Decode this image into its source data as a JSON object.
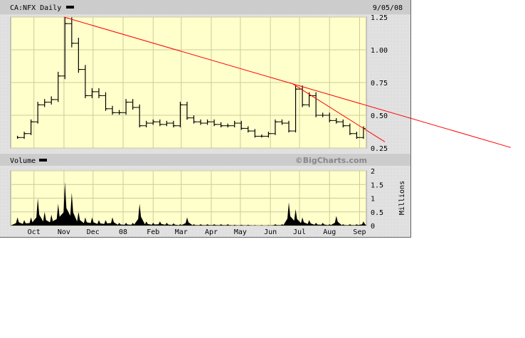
{
  "chart_data": [
    {
      "type": "line",
      "title": "CA:NFX Daily",
      "date_label": "9/05/08",
      "ylim": [
        0.25,
        1.25
      ],
      "y_ticks": [
        "1.25",
        "1.00",
        "0.75",
        "0.50",
        "0.25"
      ],
      "grid": true,
      "series_color": "#000000",
      "dates": [
        "2007-09-14",
        "2007-09-21",
        "2007-09-28",
        "2007-10-05",
        "2007-10-12",
        "2007-10-19",
        "2007-10-26",
        "2007-11-02",
        "2007-11-09",
        "2007-11-16",
        "2007-11-23",
        "2007-11-30",
        "2007-12-07",
        "2007-12-14",
        "2007-12-21",
        "2007-12-28",
        "2008-01-04",
        "2008-01-11",
        "2008-01-18",
        "2008-01-25",
        "2008-02-01",
        "2008-02-08",
        "2008-02-15",
        "2008-02-22",
        "2008-02-29",
        "2008-03-07",
        "2008-03-14",
        "2008-03-21",
        "2008-03-28",
        "2008-04-04",
        "2008-04-11",
        "2008-04-18",
        "2008-04-25",
        "2008-05-02",
        "2008-05-09",
        "2008-05-16",
        "2008-05-23",
        "2008-05-30",
        "2008-06-06",
        "2008-06-13",
        "2008-06-20",
        "2008-06-27",
        "2008-07-04",
        "2008-07-11",
        "2008-07-18",
        "2008-07-25",
        "2008-08-01",
        "2008-08-08",
        "2008-08-15",
        "2008-08-22",
        "2008-08-29",
        "2008-09-05"
      ],
      "values": [
        0.33,
        0.36,
        0.45,
        0.58,
        0.6,
        0.62,
        0.8,
        1.2,
        1.05,
        0.85,
        0.65,
        0.68,
        0.65,
        0.55,
        0.52,
        0.52,
        0.6,
        0.56,
        0.42,
        0.44,
        0.45,
        0.43,
        0.44,
        0.42,
        0.58,
        0.48,
        0.45,
        0.44,
        0.45,
        0.43,
        0.42,
        0.42,
        0.44,
        0.4,
        0.38,
        0.34,
        0.34,
        0.36,
        0.45,
        0.44,
        0.38,
        0.7,
        0.58,
        0.65,
        0.5,
        0.5,
        0.46,
        0.45,
        0.42,
        0.36,
        0.33,
        0.4
      ],
      "trendlines": {
        "color": "#ff0000",
        "lines": [
          {
            "from": [
              "2007-11-01",
              1.25
            ],
            "to": [
              "2008-06-24",
              0.74
            ]
          },
          {
            "from": [
              "2008-06-24",
              0.74
            ],
            "to": [
              "2008-09-05",
              0.4
            ]
          }
        ]
      }
    },
    {
      "type": "area",
      "title": "Volume",
      "ylabel": "Millions",
      "ylim": [
        0,
        2
      ],
      "y_ticks": [
        "2",
        "1.5",
        "1",
        "0.5",
        "0"
      ],
      "grid": true,
      "watermark": "©BigCharts.com",
      "x_tick_labels": [
        {
          "label": "Oct",
          "date": "2007-10-01"
        },
        {
          "label": "Nov",
          "date": "2007-11-01"
        },
        {
          "label": "Dec",
          "date": "2007-12-01"
        },
        {
          "label": "08",
          "date": "2008-01-01"
        },
        {
          "label": "Feb",
          "date": "2008-02-01"
        },
        {
          "label": "Mar",
          "date": "2008-03-01"
        },
        {
          "label": "Apr",
          "date": "2008-04-01"
        },
        {
          "label": "May",
          "date": "2008-05-01"
        },
        {
          "label": "Jun",
          "date": "2008-06-01"
        },
        {
          "label": "Jul",
          "date": "2008-07-01"
        },
        {
          "label": "Aug",
          "date": "2008-08-01"
        },
        {
          "label": "Sep",
          "date": "2008-09-01"
        }
      ],
      "values": [
        0.3,
        0.2,
        0.3,
        1.0,
        0.5,
        0.4,
        0.8,
        1.6,
        1.2,
        0.5,
        0.3,
        0.3,
        0.2,
        0.2,
        0.3,
        0.1,
        0.1,
        0.1,
        0.8,
        0.15,
        0.1,
        0.15,
        0.1,
        0.08,
        0.05,
        0.3,
        0.05,
        0.05,
        0.05,
        0.05,
        0.05,
        0.05,
        0.03,
        0.03,
        0.03,
        0.02,
        0.02,
        0.02,
        0.05,
        0.05,
        0.85,
        0.6,
        0.3,
        0.2,
        0.1,
        0.1,
        0.05,
        0.35,
        0.05,
        0.05,
        0.05,
        0.15
      ]
    }
  ]
}
